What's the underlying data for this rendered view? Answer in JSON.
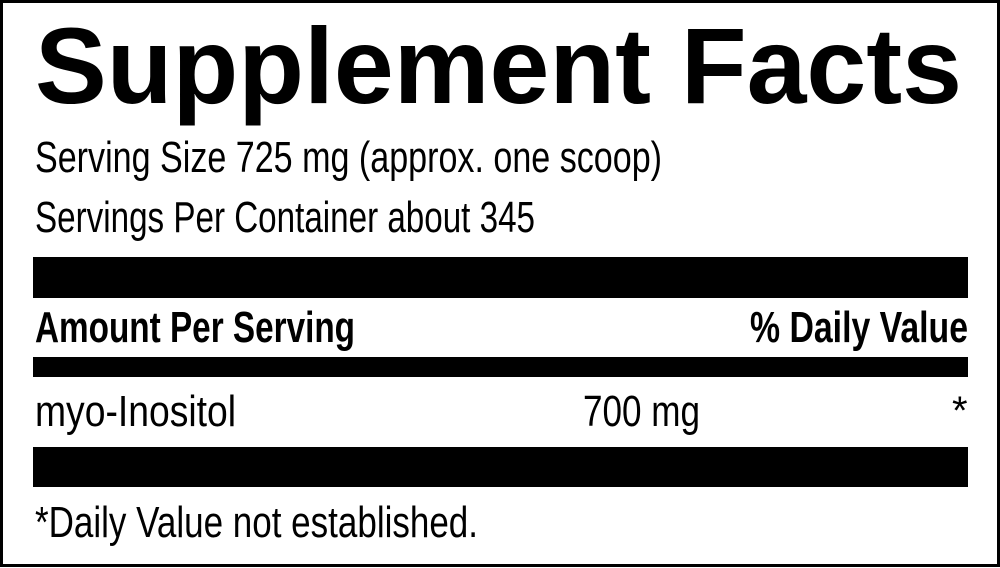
{
  "label": {
    "title": "Supplement Facts",
    "serving_size": "Serving Size 725 mg (approx. one scoop)",
    "servings_per_container": "Servings Per Container about 345",
    "header": {
      "amount_per_serving": "Amount Per Serving",
      "daily_value": "% Daily Value"
    },
    "ingredients": [
      {
        "name": "myo-Inositol",
        "amount": "700 mg",
        "daily_value": "*"
      }
    ],
    "footnote": "*Daily Value not established."
  },
  "colors": {
    "ink": "#000000",
    "background": "#ffffff"
  }
}
